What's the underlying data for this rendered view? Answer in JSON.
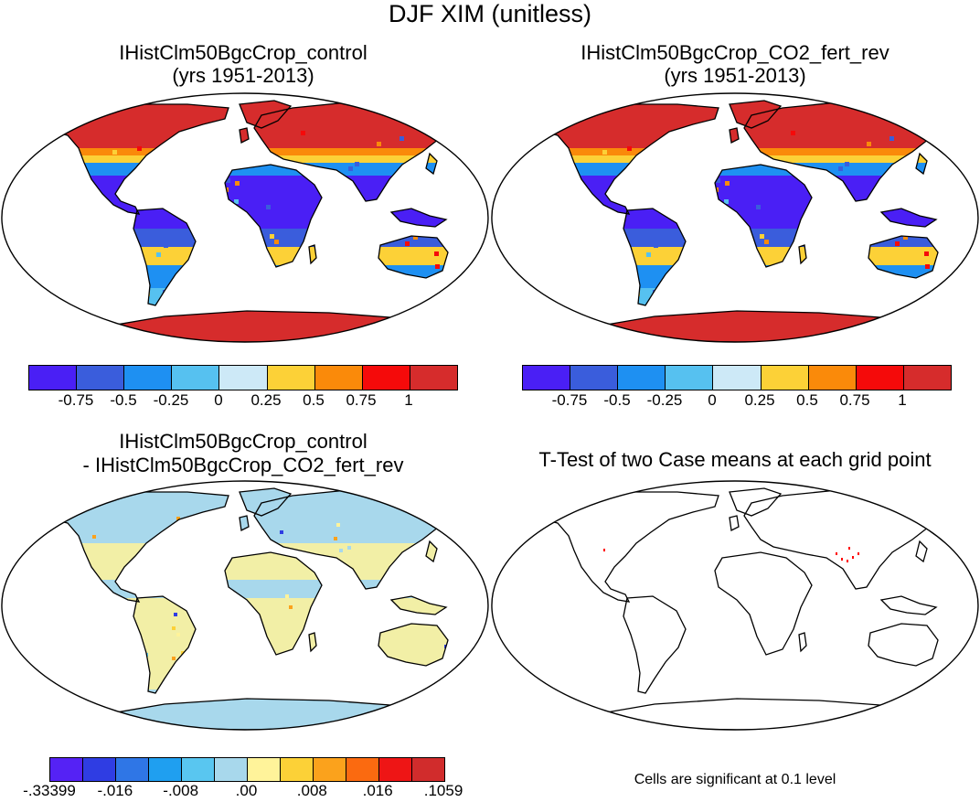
{
  "figure": {
    "title": "DJF XIM (unitless)"
  },
  "panels": {
    "top_left": {
      "title_line1": "IHistClm50BgcCrop_control",
      "title_line2": "(yrs 1951-2013)"
    },
    "top_right": {
      "title_line1": "IHistClm50BgcCrop_CO2_fert_rev",
      "title_line2": "(yrs 1951-2013)"
    },
    "bottom_left": {
      "title_line1": "IHistClm50BgcCrop_control",
      "title_line2": "- IHistClm50BgcCrop_CO2_fert_rev"
    },
    "bottom_right": {
      "title_line1": "T-Test of two Case means at each grid point",
      "note": "Cells are significant at 0.1 level"
    }
  },
  "legend_top": {
    "colors": [
      "#4a1ff5",
      "#3a5ddc",
      "#1e90f2",
      "#56c1f0",
      "#cde9f7",
      "#fcd137",
      "#fa8a0a",
      "#f50a0a",
      "#d62c2c"
    ],
    "labels": [
      "-0.75",
      "-0.5",
      "-0.25",
      "0",
      "0.25",
      "0.5",
      "0.75",
      "1"
    ]
  },
  "legend_bottom": {
    "colors": [
      "#5522f5",
      "#2f3de3",
      "#2f76e6",
      "#1f9ff0",
      "#59c6f0",
      "#a8d8ec",
      "#fff39a",
      "#fcd137",
      "#fba21c",
      "#fb6a10",
      "#ee1515",
      "#d12c2c"
    ],
    "labels": [
      "-.33399",
      "-.016",
      "-.008",
      ".00",
      ".008",
      ".016",
      ".1059"
    ]
  },
  "map_fills": {
    "ocean": "#ffffff",
    "coast": "#000000",
    "significant_cell": "#ff0000"
  }
}
